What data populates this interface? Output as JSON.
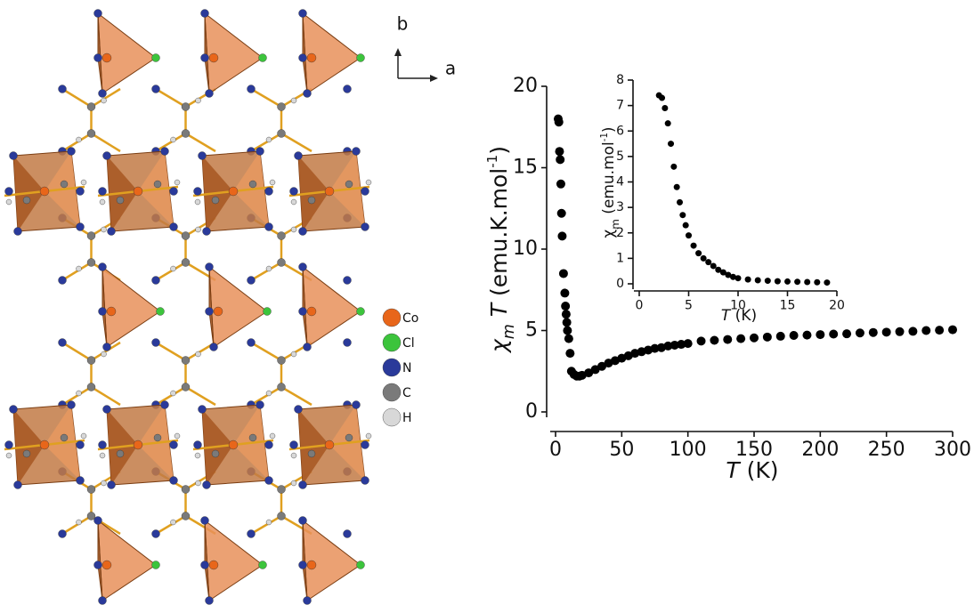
{
  "structure": {
    "axes": [
      "b",
      "a"
    ],
    "legend": [
      {
        "label": "Co",
        "color": "#e8661a"
      },
      {
        "label": "Cl",
        "color": "#3cc43c"
      },
      {
        "label": "N",
        "color": "#2a3a9a"
      },
      {
        "label": "C",
        "color": "#7a7a7a"
      },
      {
        "label": "H",
        "color": "#d8d8d8"
      }
    ]
  },
  "chart_data": [
    {
      "type": "scatter",
      "color": "#000000",
      "x": [
        2,
        2.5,
        3,
        3.5,
        4,
        4.5,
        5,
        6,
        7,
        7.5,
        8,
        8.5,
        9,
        10,
        11,
        12,
        14,
        16,
        18,
        20,
        25,
        30,
        35,
        40,
        45,
        50,
        55,
        60,
        65,
        70,
        75,
        80,
        85,
        90,
        95,
        100,
        110,
        120,
        130,
        140,
        150,
        160,
        170,
        180,
        190,
        200,
        210,
        220,
        230,
        240,
        250,
        260,
        270,
        280,
        290,
        300
      ],
      "values": [
        18,
        17.8,
        16,
        15.5,
        14,
        12.2,
        10.8,
        8.5,
        7.3,
        6.5,
        6,
        5.5,
        5,
        4.5,
        3.6,
        2.5,
        2.3,
        2.2,
        2.2,
        2.25,
        2.4,
        2.6,
        2.8,
        3,
        3.15,
        3.3,
        3.45,
        3.6,
        3.7,
        3.8,
        3.9,
        3.95,
        4.05,
        4.1,
        4.15,
        4.2,
        4.35,
        4.4,
        4.45,
        4.5,
        4.55,
        4.6,
        4.65,
        4.7,
        4.72,
        4.75,
        4.78,
        4.8,
        4.85,
        4.88,
        4.9,
        4.93,
        4.95,
        5,
        5.02,
        5.05
      ],
      "xlim": [
        0,
        300
      ],
      "ylim": [
        0,
        20
      ],
      "xticks": [
        0,
        50,
        100,
        150,
        200,
        250,
        300
      ],
      "yticks": [
        0,
        5,
        10,
        15,
        20
      ],
      "xlabel": [
        {
          "text": "T",
          "italic": true
        },
        {
          "text": " (K)"
        }
      ],
      "ylabel": [
        {
          "text": "χ",
          "italic": true
        },
        {
          "text": "m",
          "italic": true,
          "sub": true
        },
        {
          "text": " T",
          "italic": true
        },
        {
          "text": " (emu.K.mol"
        },
        {
          "text": "-1",
          "sup": true
        },
        {
          "text": ")"
        }
      ]
    },
    {
      "type": "scatter",
      "color": "#000000",
      "x": [
        2,
        2.3,
        2.6,
        2.9,
        3.2,
        3.5,
        3.8,
        4.1,
        4.4,
        4.7,
        5,
        5.5,
        6,
        6.5,
        7,
        7.5,
        8,
        8.5,
        9,
        9.5,
        10,
        11,
        12,
        13,
        14,
        15,
        16,
        17,
        18,
        19
      ],
      "values": [
        7.4,
        7.3,
        6.9,
        6.3,
        5.5,
        4.6,
        3.8,
        3.2,
        2.7,
        2.3,
        1.9,
        1.5,
        1.2,
        1,
        0.85,
        0.7,
        0.55,
        0.45,
        0.35,
        0.27,
        0.22,
        0.17,
        0.14,
        0.12,
        0.1,
        0.09,
        0.08,
        0.07,
        0.06,
        0.05
      ],
      "xlim": [
        0,
        20
      ],
      "ylim": [
        0,
        8
      ],
      "xticks": [
        0,
        5,
        10,
        15,
        20
      ],
      "yticks": [
        0,
        1,
        2,
        3,
        4,
        5,
        6,
        7,
        8
      ],
      "xlabel": [
        {
          "text": "T",
          "italic": true
        },
        {
          "text": " (K)"
        }
      ],
      "ylabel": [
        {
          "text": "χ"
        },
        {
          "text": "m",
          "sub": true
        },
        {
          "text": " (emu.mol"
        },
        {
          "text": "-1",
          "sup": true
        },
        {
          "text": ")"
        }
      ]
    }
  ]
}
